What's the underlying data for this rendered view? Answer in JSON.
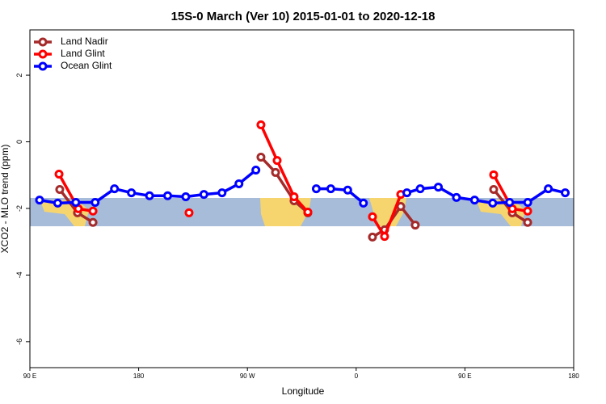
{
  "chart_data": {
    "type": "line",
    "title": "15S-0 March (Ver 10)   2015-01-01 to 2020-12-18",
    "x_label": "Longitude",
    "y_label": "XCO2 - MLO trend (ppm)",
    "xlim": [
      90,
      540
    ],
    "xticks": [
      {
        "value": 90,
        "label": "90 E"
      },
      {
        "value": 180,
        "label": "180"
      },
      {
        "value": 270,
        "label": "90 W"
      },
      {
        "value": 360,
        "label": "0"
      },
      {
        "value": 450,
        "label": "90 E"
      },
      {
        "value": 540,
        "label": "180"
      }
    ],
    "ylim": [
      -6.78,
      3.36
    ],
    "yticks": [
      -6,
      -4,
      -2,
      0,
      2
    ],
    "legend": "top-left",
    "series": [
      {
        "name": "Land Nadir",
        "color": "#a52a2a",
        "x": [
          114.7,
          129.4,
          142.2,
          null,
          281.2,
          293.3,
          308.6,
          320.0,
          null,
          373.5,
          383.5,
          396.9,
          408.9,
          null,
          473.8,
          489.2,
          501.9
        ],
        "values": [
          -1.43,
          -2.13,
          -2.42,
          null,
          -0.46,
          -0.92,
          -1.77,
          -2.13,
          null,
          -2.86,
          -2.64,
          -1.94,
          -2.5,
          null,
          -1.43,
          -2.13,
          -2.42
        ]
      },
      {
        "name": "Land Glint",
        "color": "#ff0000",
        "x": [
          114.1,
          130.1,
          142.2,
          null,
          221.7,
          null,
          281.2,
          294.6,
          308.6,
          320.0,
          null,
          373.5,
          383.5,
          396.9,
          null,
          473.8,
          489.2,
          501.9
        ],
        "values": [
          -0.97,
          -2.01,
          -2.08,
          null,
          -2.13,
          null,
          0.51,
          -0.56,
          -1.65,
          -2.11,
          null,
          -2.25,
          -2.84,
          -1.58,
          null,
          -0.99,
          -2.01,
          -2.08
        ]
      },
      {
        "name": "Ocean Glint",
        "color": "#0000ff",
        "x": [
          98,
          113,
          128,
          144,
          160,
          174,
          189,
          204,
          219,
          234,
          249,
          263,
          277,
          null,
          327,
          339,
          353,
          366,
          null,
          402,
          413,
          428,
          443,
          458,
          473,
          487,
          502,
          519,
          533
        ],
        "values": [
          -1.75,
          -1.84,
          -1.82,
          -1.82,
          -1.41,
          -1.53,
          -1.62,
          -1.62,
          -1.65,
          -1.58,
          -1.53,
          -1.26,
          -0.85,
          null,
          -1.41,
          -1.41,
          -1.45,
          -1.84,
          null,
          -1.53,
          -1.41,
          -1.36,
          -1.67,
          -1.75,
          -1.84,
          -1.82,
          -1.82,
          -1.41,
          -1.53
        ]
      }
    ]
  }
}
